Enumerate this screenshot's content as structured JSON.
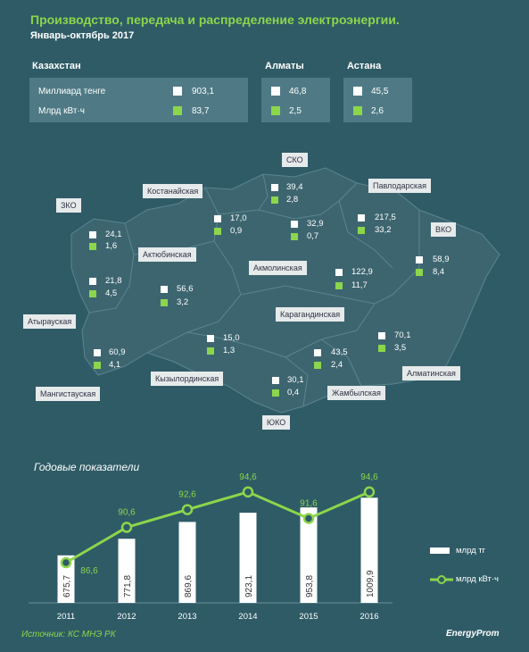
{
  "title": "Производство, передача и распределение электроэнергии.",
  "subtitle": "Январь-октябрь   2017",
  "summary": {
    "kz": {
      "name": "Казахстан",
      "label1": "Миллиард тенге",
      "label2": "Млрд кВт·ч",
      "v1": "903,1",
      "v2": "83,7"
    },
    "almaty": {
      "name": "Алматы",
      "v1": "46,8",
      "v2": "2,5"
    },
    "astana": {
      "name": "Астана",
      "v1": "45,5",
      "v2": "2,6"
    }
  },
  "regions": {
    "zko": {
      "name": "ЗКО",
      "v1": "24,1",
      "v2": "1,6"
    },
    "aty": {
      "name": "Атырауская",
      "v1": "21,8",
      "v2": "4,5"
    },
    "man": {
      "name": "Мангистауская",
      "v1": "60,9",
      "v2": "4,1"
    },
    "akt": {
      "name": "Актюбинская",
      "v1": "56,6",
      "v2": "3,2"
    },
    "kos": {
      "name": "Костанайская",
      "v1": "17,0",
      "v2": "0,9"
    },
    "sko": {
      "name": "СКО",
      "v1": "39,4",
      "v2": "2,8"
    },
    "akm": {
      "name": "Акмолинская",
      "v1": "32,9",
      "v2": "0,7"
    },
    "pav": {
      "name": "Павлодарская",
      "v1": "217,5",
      "v2": "33,2"
    },
    "vko": {
      "name": "ВКО",
      "v1": "58,9",
      "v2": "8,4"
    },
    "kar": {
      "name": "Карагандинская",
      "v1": "122,9",
      "v2": "11,7"
    },
    "kzl": {
      "name": "Кызылординская",
      "v1": "15,0",
      "v2": "1,3"
    },
    "yuko": {
      "name": "ЮКО",
      "v1": "30,1",
      "v2": "0,4"
    },
    "zha": {
      "name": "Жамбылская",
      "v1": "43,5",
      "v2": "2,4"
    },
    "alm": {
      "name": "Алматинская",
      "v1": "70,1",
      "v2": "3,5"
    }
  },
  "chart_title": "Годовые показатели",
  "source": "Источник: КС МНЭ РК",
  "logo": "EnergyProm",
  "colors": {
    "background": "#2f5b66",
    "map": "#3d6570",
    "accent": "#8cd64b",
    "bar": "#ffffff"
  },
  "chart_data": {
    "type": "bar",
    "categories": [
      "2011",
      "2012",
      "2013",
      "2014",
      "2015",
      "2016"
    ],
    "series": [
      {
        "name": "млрд тг",
        "type": "bar",
        "values": [
          675.7,
          771.8,
          869.6,
          923.1,
          953.8,
          1009.9
        ],
        "labels": [
          "675,7",
          "771,8",
          "869,6",
          "923,1",
          "953,8",
          "1009,9"
        ]
      },
      {
        "name": "млрд кВт·ч",
        "type": "line",
        "values": [
          86.6,
          90.6,
          92.6,
          94.6,
          91.6,
          94.6
        ],
        "labels": [
          "86,6",
          "90,6",
          "92,6",
          "94,6",
          "91,6",
          "94,6"
        ]
      }
    ],
    "legend_position": "right"
  }
}
